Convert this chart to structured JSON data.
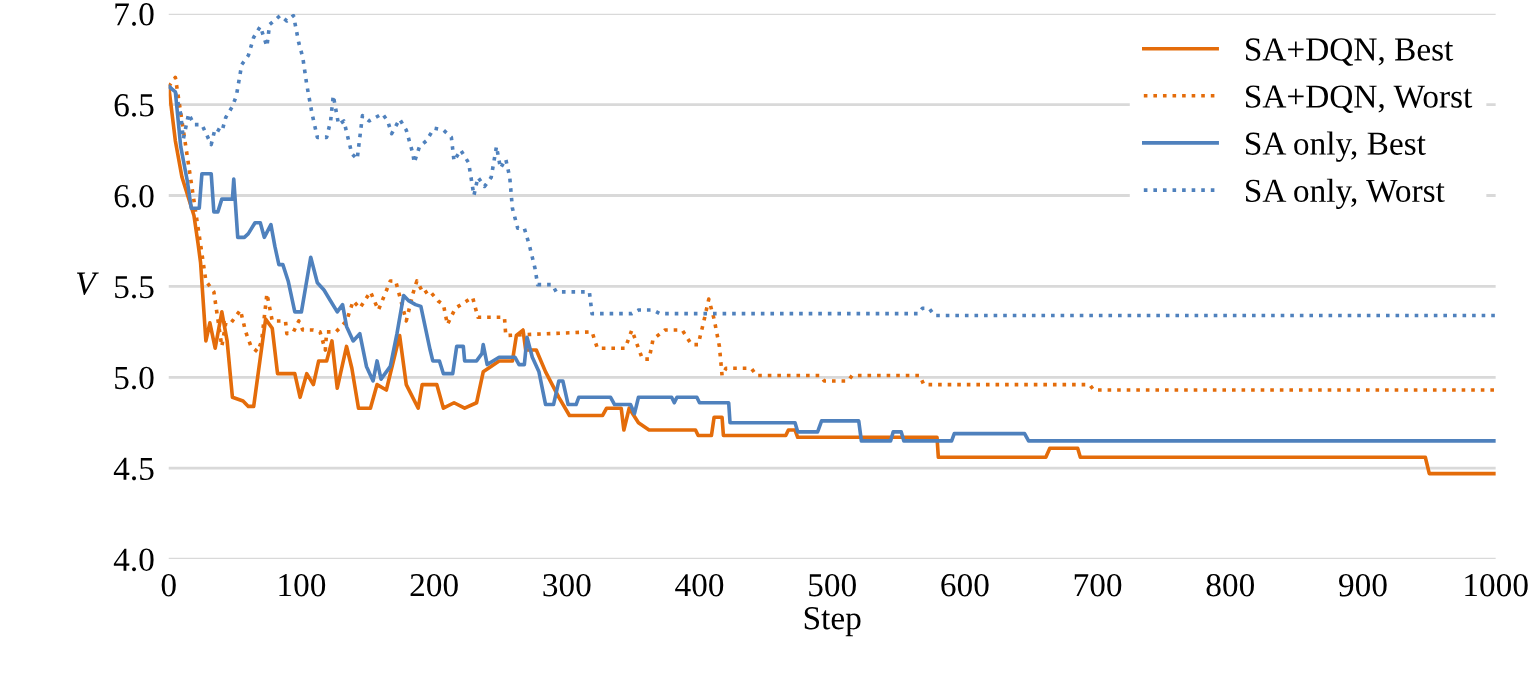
{
  "chart_data": {
    "type": "line",
    "xlabel": "Step",
    "ylabel": "V",
    "xlim": [
      0,
      1000
    ],
    "xticks": [
      0,
      100,
      200,
      300,
      400,
      500,
      600,
      700,
      800,
      900,
      1000
    ],
    "ylim": [
      4.0,
      7.0
    ],
    "yticks": [
      {
        "value": 4.0,
        "label": "4.0"
      },
      {
        "value": 4.5,
        "label": "4.5"
      },
      {
        "value": 5.0,
        "label": "5.0"
      },
      {
        "value": 5.5,
        "label": "5.5"
      },
      {
        "value": 6.0,
        "label": "6.0"
      },
      {
        "value": 6.5,
        "label": "6.5"
      },
      {
        "value": 7.0,
        "label": "7.0"
      }
    ],
    "grid": "y",
    "legend": "top right",
    "series": [
      {
        "name": "SA+DQN, Best",
        "color": "#e46c0a",
        "line_style": "solid",
        "x": [
          0,
          5,
          10,
          19,
          22,
          24,
          28,
          31,
          35,
          40,
          44,
          48,
          56,
          60,
          64,
          67,
          73,
          78,
          82,
          95,
          99,
          104,
          109,
          113,
          119,
          123,
          127,
          134,
          138,
          143,
          152,
          157,
          164,
          174,
          179,
          188,
          191,
          202,
          207,
          215,
          223,
          232,
          237,
          249,
          259,
          262,
          267,
          269,
          277,
          284,
          294,
          302,
          327,
          330,
          341,
          343,
          347,
          354,
          362,
          397,
          399,
          409,
          411,
          417,
          418,
          465,
          467,
          472,
          474,
          579,
          580,
          661,
          664,
          685,
          687,
          947,
          950,
          1000
        ],
        "values": [
          6.6,
          6.3,
          6.1,
          5.89,
          5.74,
          5.63,
          5.2,
          5.3,
          5.16,
          5.36,
          5.2,
          4.89,
          4.87,
          4.84,
          4.84,
          5.0,
          5.32,
          5.27,
          5.02,
          5.02,
          4.89,
          5.02,
          4.96,
          5.09,
          5.09,
          5.2,
          4.94,
          5.17,
          5.05,
          4.83,
          4.83,
          4.96,
          4.93,
          5.23,
          4.96,
          4.83,
          4.96,
          4.96,
          4.83,
          4.86,
          4.83,
          4.86,
          5.03,
          5.09,
          5.09,
          5.23,
          5.26,
          5.15,
          5.15,
          5.03,
          4.89,
          4.79,
          4.79,
          4.83,
          4.83,
          4.71,
          4.83,
          4.75,
          4.71,
          4.71,
          4.68,
          4.68,
          4.78,
          4.78,
          4.68,
          4.68,
          4.71,
          4.71,
          4.67,
          4.67,
          4.56,
          4.56,
          4.61,
          4.61,
          4.56,
          4.56,
          4.47,
          4.47
        ]
      },
      {
        "name": "SA+DQN, Worst",
        "color": "#e46c0a",
        "line_style": "dotted",
        "x": [
          0,
          5,
          24,
          28,
          34,
          37,
          40,
          43,
          47,
          54,
          58,
          62,
          67,
          70,
          74,
          78,
          88,
          89,
          94,
          98,
          101,
          109,
          114,
          118,
          119,
          126,
          134,
          139,
          144,
          152,
          158,
          167,
          171,
          179,
          184,
          187,
          192,
          196,
          203,
          207,
          210,
          216,
          229,
          233,
          253,
          254,
          319,
          323,
          344,
          349,
          357,
          362,
          365,
          374,
          387,
          394,
          399,
          403,
          407,
          411,
          415,
          417,
          420,
          439,
          443,
          491,
          494,
          512,
          515,
          566,
          569,
          694,
          697,
          1000
        ],
        "values": [
          6.6,
          6.65,
          5.73,
          5.53,
          5.47,
          5.32,
          5.17,
          5.3,
          5.3,
          5.37,
          5.25,
          5.17,
          5.14,
          5.2,
          5.46,
          5.31,
          5.31,
          5.24,
          5.25,
          5.31,
          5.26,
          5.26,
          5.25,
          5.15,
          5.25,
          5.25,
          5.31,
          5.42,
          5.38,
          5.47,
          5.37,
          5.53,
          5.53,
          5.31,
          5.46,
          5.53,
          5.46,
          5.48,
          5.42,
          5.4,
          5.29,
          5.38,
          5.44,
          5.33,
          5.33,
          5.23,
          5.25,
          5.16,
          5.16,
          5.26,
          5.1,
          5.1,
          5.21,
          5.26,
          5.26,
          5.18,
          5.18,
          5.3,
          5.43,
          5.32,
          5.17,
          5.01,
          5.05,
          5.05,
          5.01,
          5.01,
          4.98,
          4.98,
          5.01,
          5.01,
          4.96,
          4.96,
          4.93,
          4.93
        ]
      },
      {
        "name": "SA only, Best",
        "color": "#4f81bd",
        "line_style": "solid",
        "x": [
          0,
          5,
          9,
          14,
          17,
          23,
          25,
          32,
          34,
          37,
          40,
          48,
          49,
          52,
          57,
          60,
          65,
          69,
          72,
          77,
          80,
          83,
          86,
          90,
          95,
          100,
          107,
          112,
          117,
          122,
          127,
          131,
          134,
          139,
          144,
          149,
          154,
          157,
          160,
          167,
          172,
          177,
          181,
          186,
          190,
          197,
          199,
          204,
          207,
          214,
          217,
          222,
          223,
          232,
          236,
          237,
          240,
          249,
          261,
          264,
          268,
          270,
          274,
          279,
          284,
          290,
          294,
          297,
          301,
          307,
          309,
          333,
          336,
          348,
          351,
          354,
          379,
          381,
          383,
          398,
          400,
          422,
          423,
          472,
          474,
          489,
          492,
          520,
          522,
          544,
          546,
          552,
          554,
          590,
          592,
          645,
          648,
          1000
        ],
        "values": [
          6.6,
          6.57,
          6.27,
          6.08,
          5.93,
          5.93,
          6.12,
          6.12,
          5.91,
          5.91,
          5.98,
          5.98,
          6.09,
          5.77,
          5.77,
          5.79,
          5.85,
          5.85,
          5.77,
          5.84,
          5.72,
          5.62,
          5.62,
          5.53,
          5.36,
          5.36,
          5.66,
          5.52,
          5.48,
          5.42,
          5.36,
          5.4,
          5.28,
          5.2,
          5.24,
          5.06,
          4.98,
          5.09,
          4.99,
          5.06,
          5.24,
          5.45,
          5.42,
          5.4,
          5.39,
          5.15,
          5.09,
          5.09,
          5.02,
          5.02,
          5.17,
          5.17,
          5.09,
          5.09,
          5.13,
          5.18,
          5.07,
          5.11,
          5.11,
          5.07,
          5.07,
          5.22,
          5.11,
          5.03,
          4.85,
          4.85,
          4.98,
          4.98,
          4.85,
          4.85,
          4.89,
          4.89,
          4.85,
          4.85,
          4.8,
          4.89,
          4.89,
          4.86,
          4.89,
          4.89,
          4.86,
          4.86,
          4.75,
          4.75,
          4.7,
          4.7,
          4.76,
          4.76,
          4.65,
          4.65,
          4.7,
          4.7,
          4.65,
          4.65,
          4.69,
          4.69,
          4.65,
          4.65
        ]
      },
      {
        "name": "SA only, Worst",
        "color": "#4f81bd",
        "line_style": "dotted",
        "x": [
          0,
          5,
          9,
          11,
          15,
          19,
          25,
          32,
          35,
          40,
          43,
          48,
          51,
          55,
          60,
          64,
          69,
          74,
          76,
          84,
          89,
          94,
          98,
          101,
          104,
          108,
          112,
          119,
          122,
          124,
          128,
          132,
          138,
          142,
          146,
          151,
          161,
          165,
          168,
          174,
          179,
          184,
          185,
          189,
          194,
          200,
          207,
          213,
          215,
          220,
          226,
          230,
          233,
          238,
          243,
          247,
          250,
          254,
          257,
          259,
          263,
          268,
          272,
          276,
          278,
          289,
          292,
          317,
          319,
          349,
          354,
          365,
          370,
          565,
          568,
          573,
          577,
          1000
        ],
        "values": [
          6.6,
          6.57,
          6.45,
          6.31,
          6.45,
          6.39,
          6.39,
          6.28,
          6.37,
          6.35,
          6.43,
          6.49,
          6.55,
          6.72,
          6.77,
          6.87,
          6.93,
          6.82,
          6.94,
          6.99,
          6.96,
          6.99,
          6.84,
          6.76,
          6.61,
          6.45,
          6.32,
          6.32,
          6.41,
          6.55,
          6.39,
          6.41,
          6.23,
          6.2,
          6.44,
          6.41,
          6.45,
          6.41,
          6.34,
          6.42,
          6.36,
          6.23,
          6.18,
          6.27,
          6.3,
          6.37,
          6.36,
          6.32,
          6.19,
          6.25,
          6.18,
          6.0,
          6.1,
          6.05,
          6.1,
          6.27,
          6.15,
          6.2,
          6.1,
          5.93,
          5.82,
          5.82,
          5.72,
          5.6,
          5.51,
          5.51,
          5.47,
          5.47,
          5.35,
          5.35,
          5.37,
          5.37,
          5.35,
          5.35,
          5.38,
          5.38,
          5.34,
          5.34
        ]
      }
    ]
  }
}
